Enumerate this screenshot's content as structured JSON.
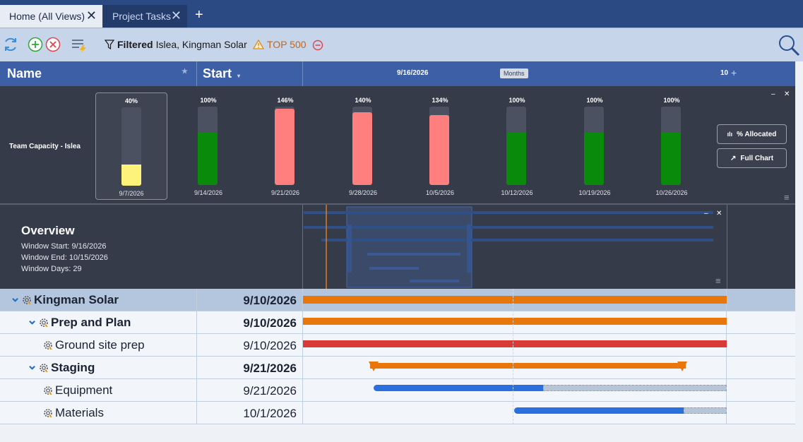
{
  "tabs": [
    {
      "label": "Home (All Views)",
      "active": true
    },
    {
      "label": "Project Tasks",
      "active": false
    }
  ],
  "toolbar": {
    "filter_bold": "Filtered",
    "filter_text": "Islea, Kingman Solar",
    "warning_text": "TOP 500"
  },
  "columns": {
    "name": "Name",
    "start": "Start",
    "timeline_date": "9/16/2026",
    "timeline_date_partial": "10",
    "scale_button": "Months"
  },
  "capacity": {
    "title": "Team Capacity - Islea",
    "buttons": {
      "allocated": "% Allocated",
      "full_chart": "Full Chart"
    },
    "weeks": [
      {
        "date": "9/7/2026",
        "pct_label": "40%",
        "level": 0.27,
        "status": "under"
      },
      {
        "date": "9/14/2026",
        "pct_label": "100%",
        "level": 0.67,
        "status": "full"
      },
      {
        "date": "9/21/2026",
        "pct_label": "146%",
        "level": 0.97,
        "status": "over"
      },
      {
        "date": "9/28/2026",
        "pct_label": "140%",
        "level": 0.93,
        "status": "over"
      },
      {
        "date": "10/5/2026",
        "pct_label": "134%",
        "level": 0.89,
        "status": "over"
      },
      {
        "date": "10/12/2026",
        "pct_label": "100%",
        "level": 0.67,
        "status": "full"
      },
      {
        "date": "10/19/2026",
        "pct_label": "100%",
        "level": 0.67,
        "status": "full"
      },
      {
        "date": "10/26/2026",
        "pct_label": "100%",
        "level": 0.67,
        "status": "full"
      }
    ],
    "colors": {
      "under": "#fdf27a",
      "full": "#0a8a0a",
      "over": "#ff7f7f"
    }
  },
  "overview": {
    "title": "Overview",
    "window_start": "Window Start: 9/16/2026",
    "window_end": "Window End: 10/15/2026",
    "window_days": "Window Days: 29"
  },
  "tasks": [
    {
      "name": "Kingman Solar",
      "start": "9/10/2026",
      "level": 0,
      "summary": true,
      "expanded": true
    },
    {
      "name": "Prep and Plan",
      "start": "9/10/2026",
      "level": 1,
      "summary": true,
      "expanded": true
    },
    {
      "name": "Ground site prep",
      "start": "9/10/2026",
      "level": 2,
      "summary": false
    },
    {
      "name": "Staging",
      "start": "9/21/2026",
      "level": 1,
      "summary": true,
      "expanded": true
    },
    {
      "name": "Equipment",
      "start": "9/21/2026",
      "level": 2,
      "summary": false
    },
    {
      "name": "Materials",
      "start": "10/1/2026",
      "level": 2,
      "summary": false
    }
  ],
  "colors": {
    "header_blue": "#3d5fa6",
    "summary_bar": "#e8760a",
    "critical_bar": "#d93a35",
    "task_bar": "#2a6fde",
    "selected_row": "#b4c6dd",
    "row_bg": "#f2f6fa"
  }
}
